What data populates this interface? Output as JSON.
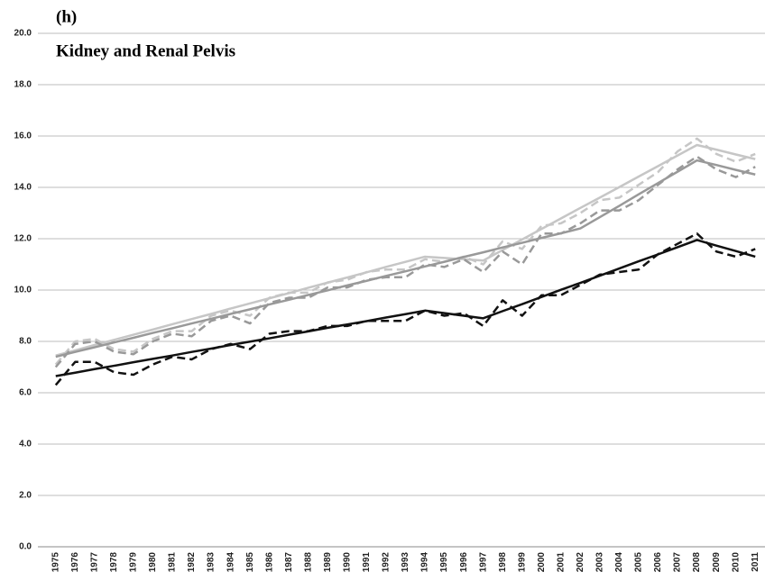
{
  "chart_data": {
    "type": "line",
    "title": "(h)",
    "annotation": "Kidney and Renal Pelvis",
    "categories": [
      "1975",
      "1976",
      "1977",
      "1978",
      "1979",
      "1980",
      "1981",
      "1982",
      "1983",
      "1984",
      "1985",
      "1986",
      "1987",
      "1988",
      "1989",
      "1990",
      "1991",
      "1992",
      "1993",
      "1994",
      "1995",
      "1996",
      "1997",
      "1998",
      "1999",
      "2000",
      "2001",
      "2002",
      "2003",
      "2004",
      "2005",
      "2006",
      "2007",
      "2008",
      "2009",
      "2010",
      "2011"
    ],
    "series": [
      {
        "color": "#c6c6c6",
        "dashed": false,
        "values": [
          7.45,
          7.65,
          7.86,
          8.06,
          8.26,
          8.46,
          8.67,
          8.87,
          9.07,
          9.28,
          9.48,
          9.68,
          9.88,
          10.09,
          10.29,
          10.49,
          10.69,
          10.9,
          11.1,
          11.3,
          11.25,
          11.2,
          11.15,
          11.56,
          11.97,
          12.38,
          12.79,
          13.2,
          13.6,
          14.01,
          14.42,
          14.83,
          15.24,
          15.65,
          15.47,
          15.28,
          15.1
        ]
      },
      {
        "color": "#c6c6c6",
        "dashed": true,
        "values": [
          7.1,
          8.0,
          8.1,
          7.7,
          7.6,
          8.1,
          8.4,
          8.4,
          9.0,
          9.2,
          9.0,
          9.7,
          9.9,
          9.9,
          10.3,
          10.4,
          10.7,
          10.8,
          10.8,
          11.2,
          11.1,
          11.3,
          11.0,
          11.9,
          11.6,
          12.5,
          12.6,
          13.0,
          13.5,
          13.6,
          14.1,
          14.6,
          15.4,
          15.9,
          15.3,
          15.0,
          15.3
        ]
      },
      {
        "color": "#999999",
        "dashed": false,
        "values": [
          7.4,
          7.59,
          7.77,
          7.96,
          8.14,
          8.33,
          8.51,
          8.7,
          8.88,
          9.07,
          9.25,
          9.44,
          9.62,
          9.81,
          9.99,
          10.18,
          10.36,
          10.55,
          10.73,
          10.92,
          11.1,
          11.29,
          11.47,
          11.66,
          11.84,
          12.03,
          12.21,
          12.4,
          12.84,
          13.28,
          13.73,
          14.17,
          14.61,
          15.05,
          14.87,
          14.68,
          14.5
        ]
      },
      {
        "color": "#999999",
        "dashed": true,
        "values": [
          7.0,
          7.9,
          8.0,
          7.6,
          7.5,
          8.0,
          8.3,
          8.2,
          8.8,
          9.0,
          8.7,
          9.5,
          9.7,
          9.7,
          10.1,
          10.1,
          10.4,
          10.5,
          10.5,
          11.0,
          10.9,
          11.2,
          10.7,
          11.5,
          11.0,
          12.2,
          12.2,
          12.6,
          13.1,
          13.1,
          13.5,
          14.1,
          14.7,
          15.2,
          14.7,
          14.4,
          14.8
        ]
      },
      {
        "color": "#111111",
        "dashed": false,
        "values": [
          6.65,
          6.78,
          6.92,
          7.05,
          7.19,
          7.32,
          7.45,
          7.59,
          7.72,
          7.86,
          7.99,
          8.12,
          8.26,
          8.39,
          8.53,
          8.66,
          8.79,
          8.93,
          9.06,
          9.2,
          9.1,
          9.0,
          8.9,
          9.18,
          9.45,
          9.73,
          10.01,
          10.28,
          10.56,
          10.84,
          11.12,
          11.39,
          11.67,
          11.95,
          11.73,
          11.52,
          11.3
        ]
      },
      {
        "color": "#111111",
        "dashed": true,
        "values": [
          6.3,
          7.2,
          7.2,
          6.8,
          6.7,
          7.1,
          7.4,
          7.3,
          7.7,
          7.9,
          7.7,
          8.3,
          8.4,
          8.4,
          8.6,
          8.6,
          8.8,
          8.8,
          8.8,
          9.2,
          9.0,
          9.1,
          8.6,
          9.6,
          9.0,
          9.8,
          9.8,
          10.2,
          10.6,
          10.7,
          10.8,
          11.4,
          11.8,
          12.2,
          11.5,
          11.3,
          11.6
        ]
      }
    ],
    "ylim": [
      0,
      20
    ],
    "yticks": [
      {
        "value": 0,
        "label": "0.0"
      },
      {
        "value": 2,
        "label": "2.0"
      },
      {
        "value": 4,
        "label": "4.0"
      },
      {
        "value": 6,
        "label": "6.0"
      },
      {
        "value": 8,
        "label": "8.0"
      },
      {
        "value": 10,
        "label": "10.0"
      },
      {
        "value": 12,
        "label": "12.0"
      },
      {
        "value": 14,
        "label": "14.0"
      },
      {
        "value": 16,
        "label": "16.0"
      },
      {
        "value": 18,
        "label": "18.0"
      },
      {
        "value": 20,
        "label": "20.0"
      }
    ],
    "grid": true
  }
}
